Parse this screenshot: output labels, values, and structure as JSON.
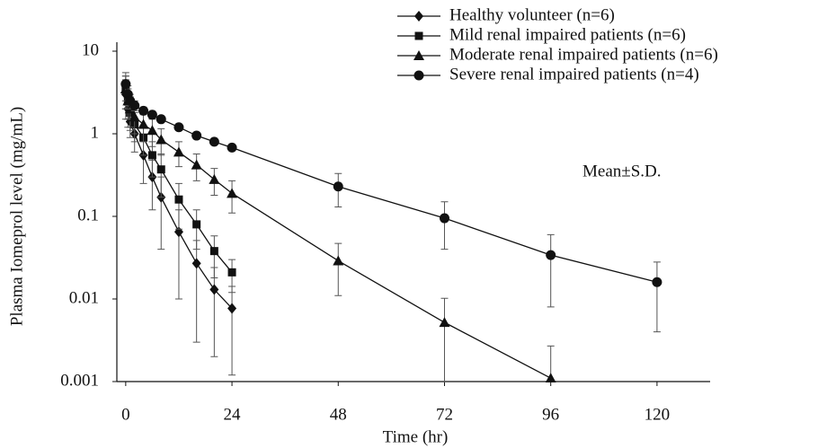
{
  "chart_data": {
    "type": "line",
    "xlabel": "Time (hr)",
    "ylabel": "Plasma Iomeprol level (mg/mL)",
    "annotation": "Mean±S.D.",
    "log_y": true,
    "xlim": [
      -2,
      132
    ],
    "xticks": [
      0,
      24,
      48,
      72,
      96,
      120
    ],
    "ylim": [
      0.001,
      10
    ],
    "yticks": [
      10,
      1,
      0.1,
      0.01,
      0.001
    ],
    "series": [
      {
        "name": "Healthy volunteer (n=6)",
        "marker": "diamond",
        "color": "#111111",
        "x": [
          0,
          0.5,
          1,
          2,
          4,
          6,
          8,
          12,
          16,
          20,
          24
        ],
        "values": [
          3,
          2,
          1.4,
          1.0,
          0.55,
          0.3,
          0.17,
          0.065,
          0.027,
          0.013,
          0.0077
        ],
        "errors": [
          1.5,
          0.8,
          0.5,
          0.4,
          0.3,
          0.18,
          0.13,
          0.055,
          0.024,
          0.011,
          0.0065
        ]
      },
      {
        "name": "Mild renal impaired patients (n=6)",
        "marker": "square",
        "color": "#111111",
        "x": [
          0,
          0.5,
          1,
          2,
          4,
          6,
          8,
          12,
          16,
          20,
          24
        ],
        "values": [
          3.5,
          2.5,
          1.8,
          1.3,
          0.9,
          0.55,
          0.37,
          0.16,
          0.08,
          0.038,
          0.021
        ],
        "errors": [
          1.5,
          1.0,
          0.7,
          0.5,
          0.35,
          0.25,
          0.2,
          0.09,
          0.04,
          0.02,
          0.009
        ]
      },
      {
        "name": "Moderate renal impaired patients (n=6)",
        "marker": "triangle",
        "color": "#111111",
        "x": [
          0,
          0.5,
          1,
          2,
          4,
          6,
          8,
          12,
          16,
          20,
          24,
          48,
          72,
          96
        ],
        "values": [
          3.5,
          2.5,
          2,
          1.6,
          1.3,
          1.1,
          0.85,
          0.6,
          0.42,
          0.28,
          0.19,
          0.029,
          0.0052,
          0.0011
        ],
        "errors": [
          1.5,
          1.0,
          0.8,
          0.6,
          0.5,
          0.4,
          0.3,
          0.2,
          0.15,
          0.1,
          0.08,
          0.018,
          0.005,
          0.0016
        ]
      },
      {
        "name": "Severe renal impaired patients (n=4)",
        "marker": "circle",
        "color": "#111111",
        "x": [
          0,
          0.5,
          1,
          2,
          4,
          6,
          8,
          12,
          16,
          20,
          24,
          48,
          72,
          96,
          120
        ],
        "values": [
          4,
          3,
          2.5,
          2.2,
          1.9,
          1.7,
          1.5,
          1.2,
          0.95,
          0.8,
          0.68,
          0.23,
          0.095,
          0.034,
          0.016
        ],
        "errors": [
          1.5,
          0.8,
          0.5,
          0.3,
          0.2,
          0.15,
          0.12,
          0.1,
          0.08,
          0.06,
          0.05,
          0.1,
          0.055,
          0.026,
          0.012
        ]
      }
    ]
  }
}
